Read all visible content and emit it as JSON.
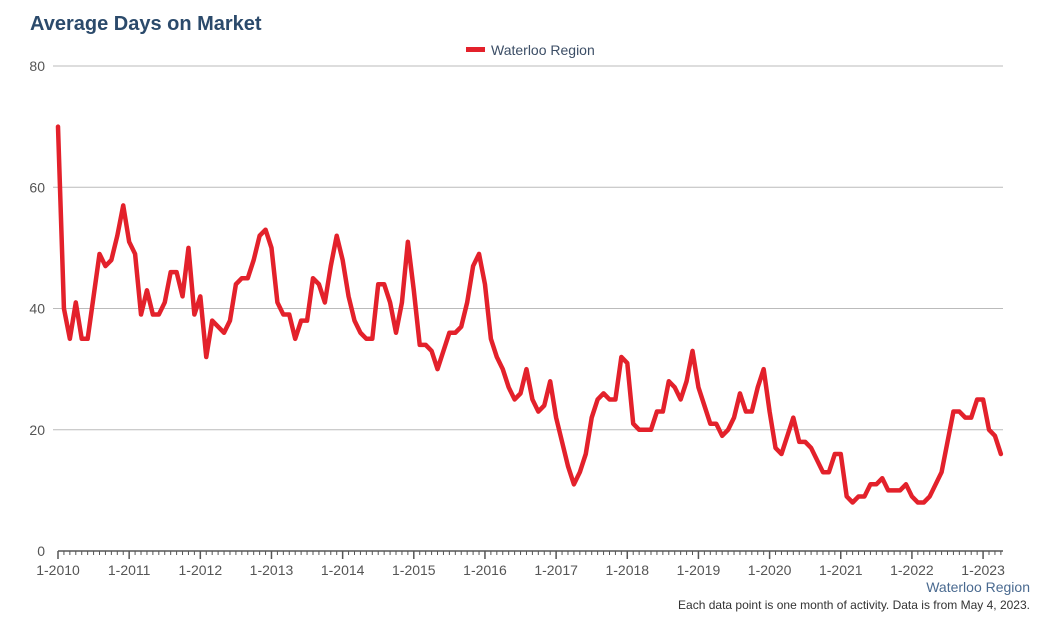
{
  "chart_data": {
    "type": "line",
    "title": "Average Days on Market",
    "xlabel": "",
    "ylabel": "",
    "ylim": [
      0,
      80
    ],
    "yticks": [
      0,
      20,
      40,
      60,
      80
    ],
    "xtick_labels": [
      "1-2010",
      "1-2011",
      "1-2012",
      "1-2013",
      "1-2014",
      "1-2015",
      "1-2016",
      "1-2017",
      "1-2018",
      "1-2019",
      "1-2020",
      "1-2021",
      "1-2022",
      "1-2023"
    ],
    "start": "1-2010",
    "grid": true,
    "legend_position": "top-center",
    "series": [
      {
        "name": "Waterloo Region",
        "color": "#e3212b",
        "values": [
          70,
          40,
          35,
          41,
          35,
          35,
          42,
          49,
          47,
          48,
          52,
          57,
          51,
          49,
          39,
          43,
          39,
          39,
          41,
          46,
          46,
          42,
          50,
          39,
          42,
          32,
          38,
          37,
          36,
          38,
          44,
          45,
          45,
          48,
          52,
          53,
          50,
          41,
          39,
          39,
          35,
          38,
          38,
          45,
          44,
          41,
          47,
          52,
          48,
          42,
          38,
          36,
          35,
          35,
          44,
          44,
          41,
          36,
          41,
          51,
          43,
          34,
          34,
          33,
          30,
          33,
          36,
          36,
          37,
          41,
          47,
          49,
          44,
          35,
          32,
          30,
          27,
          25,
          26,
          30,
          25,
          23,
          24,
          28,
          22,
          18,
          14,
          11,
          13,
          16,
          22,
          25,
          26,
          25,
          25,
          32,
          31,
          21,
          20,
          20,
          20,
          23,
          23,
          28,
          27,
          25,
          28,
          33,
          27,
          24,
          21,
          21,
          19,
          20,
          22,
          26,
          23,
          23,
          27,
          30,
          23,
          17,
          16,
          19,
          22,
          18,
          18,
          17,
          15,
          13,
          13,
          16,
          16,
          9,
          8,
          9,
          9,
          11,
          11,
          12,
          10,
          10,
          10,
          11,
          9,
          8,
          8,
          9,
          11,
          13,
          18,
          23,
          23,
          22,
          22,
          25,
          25,
          20,
          19,
          16
        ]
      }
    ]
  },
  "footer": {
    "source_label": "Waterloo Region",
    "note": "Each data point is one month of activity. Data is from May 4, 2023."
  }
}
